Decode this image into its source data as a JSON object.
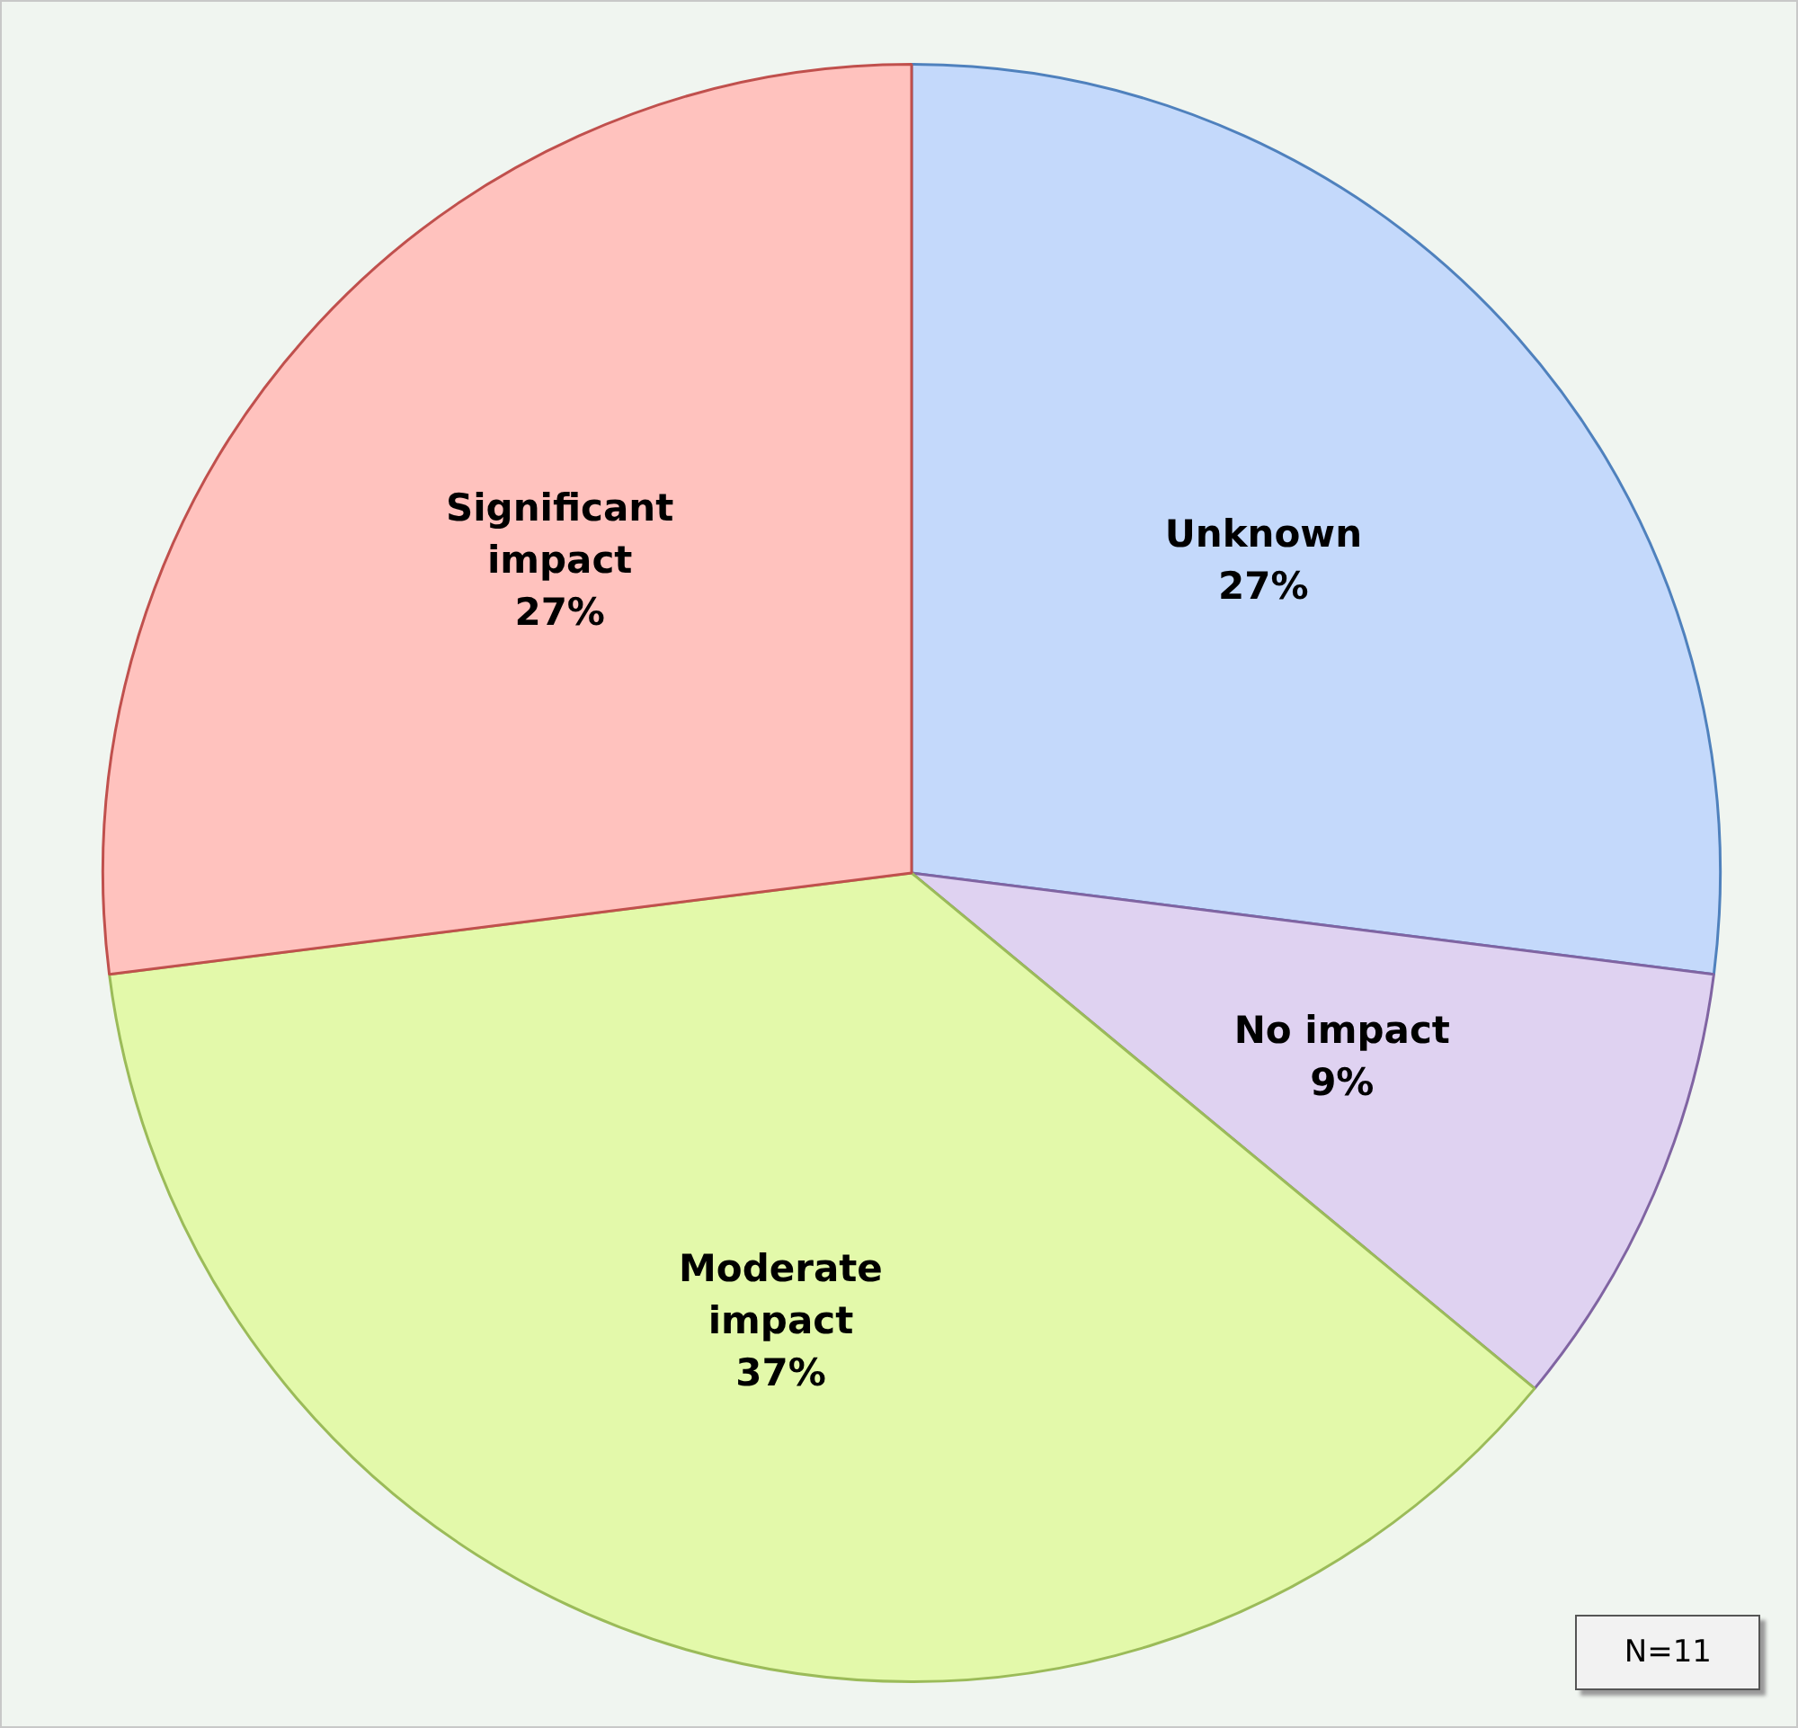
{
  "chart_data": {
    "type": "pie",
    "categories": [
      "Unknown",
      "No impact",
      "Moderate impact",
      "Significant impact"
    ],
    "values": [
      27,
      9,
      37,
      27
    ],
    "colors": [
      "#c4d9fb",
      "#dfd2f1",
      "#e3f9aa",
      "#ffc2be"
    ],
    "value_labels": [
      "27%",
      "9%",
      "37%",
      "27%"
    ],
    "annotations": [
      "N=11"
    ]
  }
}
